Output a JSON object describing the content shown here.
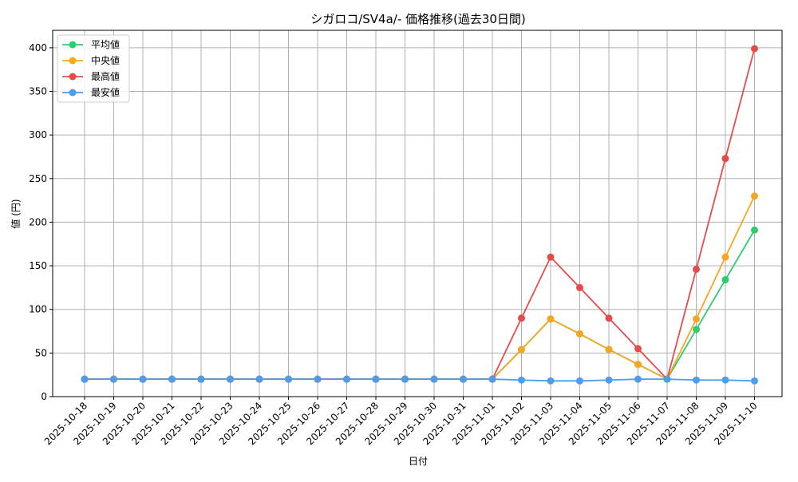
{
  "chart_data": {
    "type": "line",
    "title": "シガロコ/SV4a/- 価格推移(過去30日間)",
    "xlabel": "日付",
    "ylabel": "値 (円)",
    "ylim": [
      0,
      420
    ],
    "yticks": [
      0,
      50,
      100,
      150,
      200,
      250,
      300,
      350,
      400
    ],
    "grid": true,
    "legend_position": "top-left",
    "categories": [
      "2025-10-18",
      "2025-10-19",
      "2025-10-20",
      "2025-10-21",
      "2025-10-22",
      "2025-10-23",
      "2025-10-24",
      "2025-10-25",
      "2025-10-26",
      "2025-10-27",
      "2025-10-28",
      "2025-10-29",
      "2025-10-30",
      "2025-10-31",
      "2025-11-01",
      "2025-11-02",
      "2025-11-03",
      "2025-11-04",
      "2025-11-05",
      "2025-11-06",
      "2025-11-07",
      "2025-11-08",
      "2025-11-09",
      "2025-11-10"
    ],
    "series": [
      {
        "name": "平均値",
        "color": "#2ecc71",
        "values": [
          20,
          20,
          20,
          20,
          20,
          20,
          20,
          20,
          20,
          20,
          20,
          20,
          20,
          20,
          20,
          54,
          89,
          72,
          54,
          37,
          20,
          77,
          134,
          191
        ]
      },
      {
        "name": "中央値",
        "color": "#f5a623",
        "values": [
          20,
          20,
          20,
          20,
          20,
          20,
          20,
          20,
          20,
          20,
          20,
          20,
          20,
          20,
          20,
          54,
          89,
          72,
          54,
          37,
          20,
          89,
          160,
          230
        ]
      },
      {
        "name": "最高値",
        "color": "#e84a4a",
        "values": [
          20,
          20,
          20,
          20,
          20,
          20,
          20,
          20,
          20,
          20,
          20,
          20,
          20,
          20,
          20,
          90,
          160,
          125,
          90,
          55,
          20,
          146,
          273,
          399
        ]
      },
      {
        "name": "最安値",
        "color": "#4a9ef0",
        "values": [
          20,
          20,
          20,
          20,
          20,
          20,
          20,
          20,
          20,
          20,
          20,
          20,
          20,
          20,
          20,
          19,
          18,
          18,
          19,
          20,
          20,
          19,
          19,
          18
        ]
      }
    ]
  }
}
